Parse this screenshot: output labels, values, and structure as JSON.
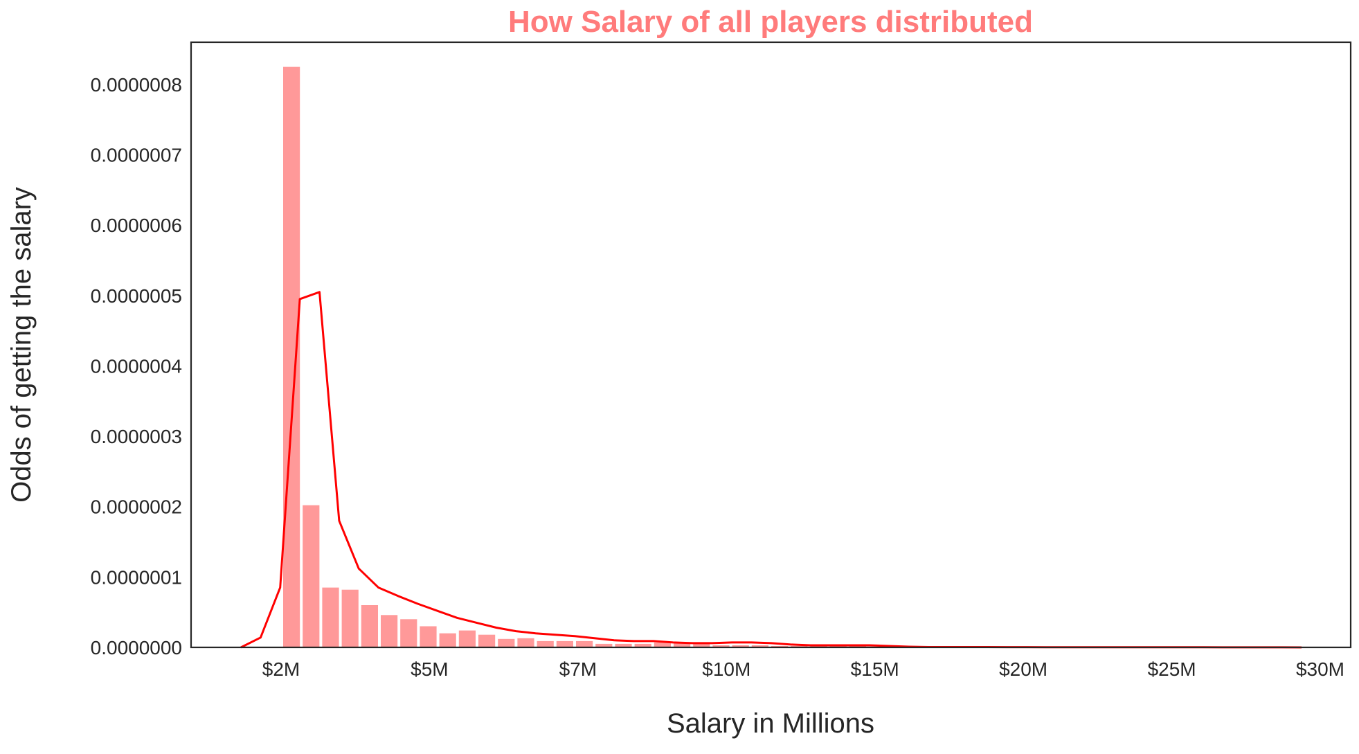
{
  "chart_data": {
    "type": "bar",
    "title": "How Salary of all players distributed",
    "xlabel": "Salary in Millions",
    "ylabel": "Odds of getting the salary",
    "ylim": [
      0,
      8.6e-07
    ],
    "grid": false,
    "y_ticks": [
      {
        "value": 0.0,
        "label": "0.0000000"
      },
      {
        "value": 1e-07,
        "label": "0.0000001"
      },
      {
        "value": 2e-07,
        "label": "0.0000002"
      },
      {
        "value": 3e-07,
        "label": "0.0000003"
      },
      {
        "value": 4e-07,
        "label": "0.0000004"
      },
      {
        "value": 5e-07,
        "label": "0.0000005"
      },
      {
        "value": 6e-07,
        "label": "0.0000006"
      },
      {
        "value": 7e-07,
        "label": "0.0000007"
      },
      {
        "value": 8e-07,
        "label": "0.0000008"
      }
    ],
    "x_tick_labels": [
      "$2M",
      "$5M",
      "$7M",
      "$10M",
      "$15M",
      "$20M",
      "$25M",
      "$30M"
    ],
    "colors": {
      "bars": "#ff9999",
      "kde_line": "#ff0000",
      "title": "#ff7b7b",
      "axes": "#262626"
    },
    "bars": [
      8.25e-07,
      2.02e-07,
      8.5e-08,
      8.2e-08,
      6e-08,
      4.6e-08,
      4e-08,
      3e-08,
      2e-08,
      2.4e-08,
      1.8e-08,
      1.2e-08,
      1.3e-08,
      9e-09,
      9e-09,
      9e-09,
      5e-09,
      5e-09,
      5e-09,
      7e-09,
      6e-09,
      5e-09,
      3e-09,
      3e-09,
      3e-09,
      2e-09,
      2e-09,
      2e-09,
      2e-09,
      2e-09,
      1e-09,
      1e-09,
      1e-09,
      1e-09,
      1e-09,
      1e-09,
      1e-09,
      1e-09,
      1e-09,
      1e-09,
      5e-10,
      5e-10,
      5e-10,
      5e-10,
      5e-10,
      5e-10,
      5e-10,
      5e-10
    ],
    "kde": [
      0.0,
      1.4e-08,
      8.5e-08,
      4.95e-07,
      5.05e-07,
      1.8e-07,
      1.12e-07,
      8.5e-08,
      7.3e-08,
      6.2e-08,
      5.2e-08,
      4.2e-08,
      3.5e-08,
      2.8e-08,
      2.3e-08,
      2e-08,
      1.8e-08,
      1.6e-08,
      1.3e-08,
      1e-08,
      9e-09,
      9e-09,
      7e-09,
      6e-09,
      6e-09,
      7e-09,
      7e-09,
      6e-09,
      4e-09,
      3e-09,
      3e-09,
      3e-09,
      3e-09,
      2e-09,
      1e-09,
      5e-10,
      5e-10,
      5e-10,
      5e-10,
      4e-10,
      4e-10,
      3e-10,
      3e-10,
      3e-10,
      3e-10,
      2e-10,
      2e-10,
      2e-10,
      2e-10,
      2e-10,
      1e-10,
      1e-10,
      1e-10,
      1e-10,
      0.0
    ]
  }
}
